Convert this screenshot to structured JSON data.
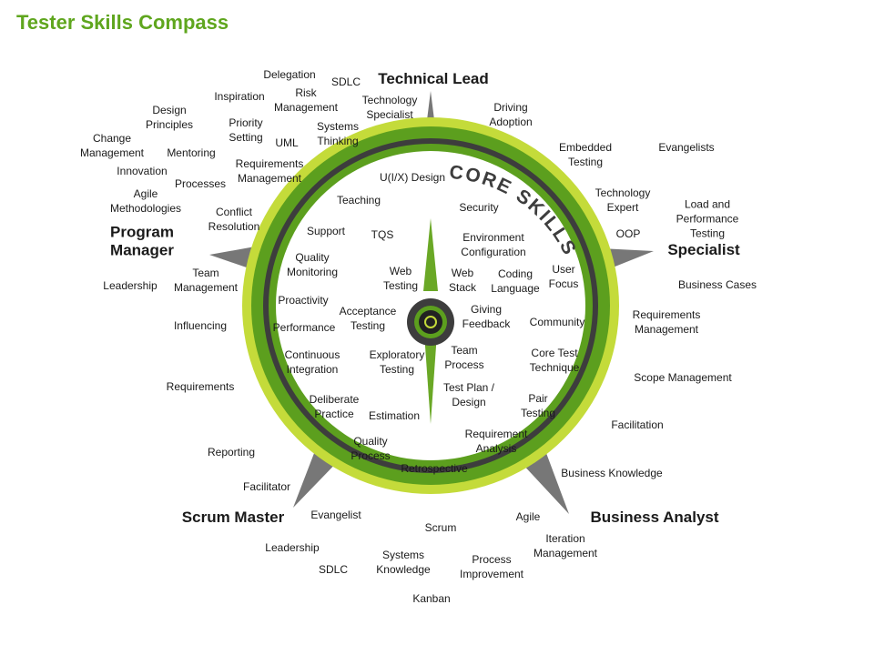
{
  "title": "Tester Skills Compass",
  "core_label": "CORE SKILLS",
  "colors": {
    "title": "#5fa61e",
    "ring_light": "#c4db3a",
    "ring_green": "#5c9f1e",
    "ring_dark": "#3d3d3d",
    "needle_green": "#6aa826",
    "pointer_gray": "#777777"
  },
  "roles": {
    "technical_lead": "Technical Lead",
    "specialist": "Specialist",
    "business_analyst": "Business Analyst",
    "scrum_master": "Scrum Master",
    "program_manager": "Program\nManager"
  },
  "core_skills": [
    "U(I/X) Design",
    "Teaching",
    "Security",
    "Support",
    "TQS",
    "Environment\nConfiguration",
    "Quality\nMonitoring",
    "Web\nTesting",
    "Web\nStack",
    "Coding\nLanguage",
    "User\nFocus",
    "Proactivity",
    "Acceptance\nTesting",
    "Giving\nFeedback",
    "Community",
    "Performance",
    "Continuous\nIntegration",
    "Exploratory\nTesting",
    "Team\nProcess",
    "Core Test\nTechnique",
    "Test Plan /\nDesign",
    "Deliberate\nPractice",
    "Estimation",
    "Pair\nTesting",
    "Quality\nProcess",
    "Requirement\nAnalysis",
    "Retrospective"
  ],
  "outer_skills": [
    "Delegation",
    "SDLC",
    "Risk\nManagement",
    "Inspiration",
    "Technology\nSpecialist",
    "Design\nPrinciples",
    "Priority\nSetting",
    "Systems\nThinking",
    "Change\nManagement",
    "UML",
    "Mentoring",
    "Requirements\nManagement",
    "Innovation",
    "Processes",
    "Agile\nMethodologies",
    "Conflict\nResolution",
    "Driving\nAdoption",
    "Embedded\nTesting",
    "Evangelists",
    "Technology\nExpert",
    "Load and\nPerformance\nTesting",
    "OOP",
    "Business Cases",
    "Requirements\nManagement",
    "Scope Management",
    "Facilitation",
    "Business Knowledge",
    "Leadership",
    "Team\nManagement",
    "Influencing",
    "Requirements",
    "Reporting",
    "Facilitator",
    "Evangelist",
    "Leadership",
    "SDLC",
    "Systems\nKnowledge",
    "Scrum",
    "Kanban",
    "Process\nImprovement",
    "Agile",
    "Iteration\nManagement"
  ]
}
